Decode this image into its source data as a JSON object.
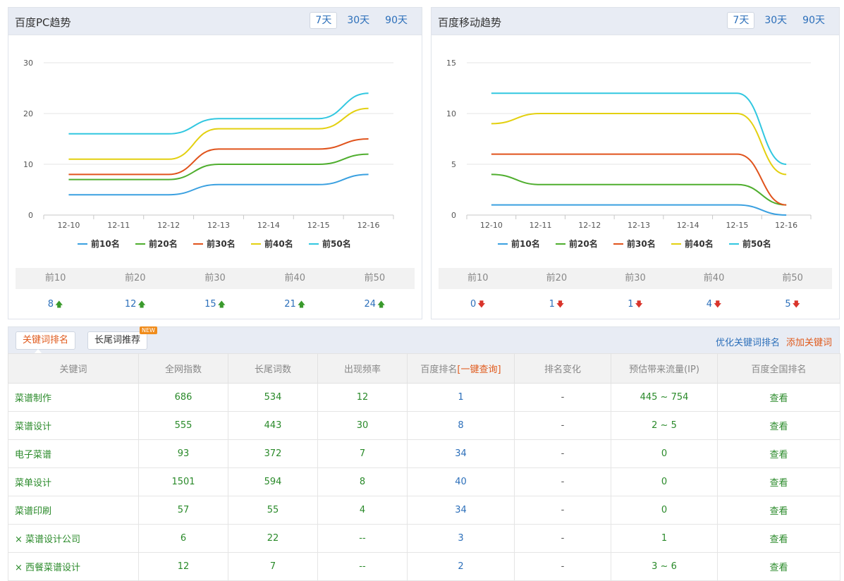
{
  "pc_panel": {
    "title": "百度PC趋势",
    "ranges": [
      "7天",
      "30天",
      "90天"
    ],
    "active_range": "7天",
    "rank_headers": [
      "前10",
      "前20",
      "前30",
      "前40",
      "前50"
    ],
    "rank_values": [
      "8",
      "12",
      "15",
      "21",
      "24"
    ],
    "rank_trend": "up"
  },
  "mobile_panel": {
    "title": "百度移动趋势",
    "ranges": [
      "7天",
      "30天",
      "90天"
    ],
    "active_range": "7天",
    "rank_headers": [
      "前10",
      "前20",
      "前30",
      "前40",
      "前50"
    ],
    "rank_values": [
      "0",
      "1",
      "1",
      "4",
      "5"
    ],
    "rank_trend": "down"
  },
  "chart_data": [
    {
      "type": "line",
      "title": "",
      "categories": [
        "12-10",
        "12-11",
        "12-12",
        "12-13",
        "12-14",
        "12-15",
        "12-16"
      ],
      "ylim": [
        0,
        30
      ],
      "yticks": [
        0,
        10,
        20,
        30
      ],
      "grid": true,
      "legend_position": "bottom",
      "series": [
        {
          "name": "前10名",
          "color": "#3aa0e0",
          "values": [
            4,
            4,
            4,
            6,
            6,
            6,
            8
          ]
        },
        {
          "name": "前20名",
          "color": "#4fae2e",
          "values": [
            7,
            7,
            7,
            10,
            10,
            10,
            12
          ]
        },
        {
          "name": "前30名",
          "color": "#e0531c",
          "values": [
            8,
            8,
            8,
            13,
            13,
            13,
            15
          ]
        },
        {
          "name": "前40名",
          "color": "#e3d010",
          "values": [
            11,
            11,
            11,
            17,
            17,
            17,
            21
          ]
        },
        {
          "name": "前50名",
          "color": "#31c7e0",
          "values": [
            16,
            16,
            16,
            19,
            19,
            19,
            24
          ]
        }
      ]
    },
    {
      "type": "line",
      "title": "",
      "categories": [
        "12-10",
        "12-11",
        "12-12",
        "12-13",
        "12-14",
        "12-15",
        "12-16"
      ],
      "ylim": [
        0,
        15
      ],
      "yticks": [
        0,
        5,
        10,
        15
      ],
      "grid": true,
      "legend_position": "bottom",
      "series": [
        {
          "name": "前10名",
          "color": "#3aa0e0",
          "values": [
            1,
            1,
            1,
            1,
            1,
            1,
            0
          ]
        },
        {
          "name": "前20名",
          "color": "#4fae2e",
          "values": [
            4,
            3,
            3,
            3,
            3,
            3,
            1
          ]
        },
        {
          "name": "前30名",
          "color": "#e0531c",
          "values": [
            6,
            6,
            6,
            6,
            6,
            6,
            1
          ]
        },
        {
          "name": "前40名",
          "color": "#e3d010",
          "values": [
            9,
            10,
            10,
            10,
            10,
            10,
            4
          ]
        },
        {
          "name": "前50名",
          "color": "#31c7e0",
          "values": [
            12,
            12,
            12,
            12,
            12,
            12,
            5
          ]
        }
      ]
    }
  ],
  "keyword_tabs": {
    "tab1": "关键词排名",
    "tab2": "长尾词推荐",
    "new_badge": "NEW",
    "link_optimize": "优化关键词排名",
    "link_add": "添加关键词"
  },
  "table": {
    "headers": [
      "关键词",
      "全网指数",
      "长尾词数",
      "出现频率",
      "百度排名",
      "排名变化",
      "预估带来流量(IP)",
      "百度全国排名"
    ],
    "query_link": "[一键查询]",
    "rows": [
      [
        "菜谱制作",
        "686",
        "534",
        "12",
        "1",
        "-",
        "445 ~ 754",
        "查看"
      ],
      [
        "菜谱设计",
        "555",
        "443",
        "30",
        "8",
        "-",
        "2 ~ 5",
        "查看"
      ],
      [
        "电子菜谱",
        "93",
        "372",
        "7",
        "34",
        "-",
        "0",
        "查看"
      ],
      [
        "菜单设计",
        "1501",
        "594",
        "8",
        "40",
        "-",
        "0",
        "查看"
      ],
      [
        "菜谱印刷",
        "57",
        "55",
        "4",
        "34",
        "-",
        "0",
        "查看"
      ],
      [
        "× 菜谱设计公司",
        "6",
        "22",
        "--",
        "3",
        "-",
        "1",
        "查看"
      ],
      [
        "× 西餐菜谱设计",
        "12",
        "7",
        "--",
        "2",
        "-",
        "3 ~ 6",
        "查看"
      ]
    ]
  },
  "colors": {
    "link_blue": "#2c6fba",
    "value_green": "#2a8a2a",
    "accent_orange": "#e05a1c",
    "header_bg": "#e8ecf4"
  }
}
